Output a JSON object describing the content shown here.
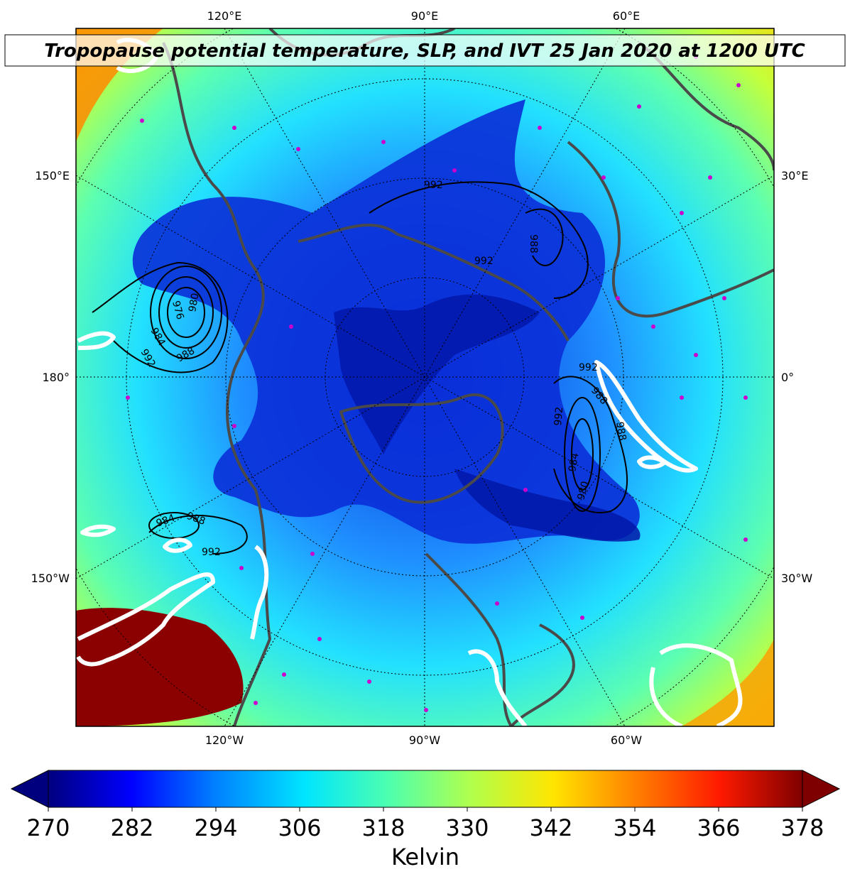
{
  "title": "Tropopause potential temperature, SLP, and IVT 25 Jan 2020 at 1200 UTC",
  "lon_labels": {
    "top": [
      "120°E",
      "90°E",
      "60°E"
    ],
    "bottom": [
      "120°W",
      "90°W",
      "60°W"
    ],
    "left": [
      "150°E",
      "180°",
      "150°W"
    ],
    "right": [
      "30°E",
      "0°",
      "30°W"
    ]
  },
  "slp_contour_labels": [
    "992",
    "988",
    "992",
    "976",
    "980",
    "984",
    "988",
    "992",
    "992",
    "988",
    "984",
    "980",
    "992",
    "988",
    "984",
    "988",
    "992"
  ],
  "colorbar": {
    "label": "Kelvin",
    "ticks": [
      "270",
      "282",
      "294",
      "306",
      "318",
      "330",
      "342",
      "354",
      "366",
      "378"
    ],
    "min": 270,
    "max": 378,
    "colors": [
      "#00007f",
      "#0000ff",
      "#007fff",
      "#00e5ff",
      "#4cffb0",
      "#b0ff4c",
      "#ffe500",
      "#ff7f00",
      "#ff1a00",
      "#7f0000"
    ]
  },
  "colors": {
    "coastline": "#4a4a4a",
    "station_marker": "#cc00cc",
    "slp_contour": "#000000",
    "ivt_contour": "#ffffff"
  }
}
